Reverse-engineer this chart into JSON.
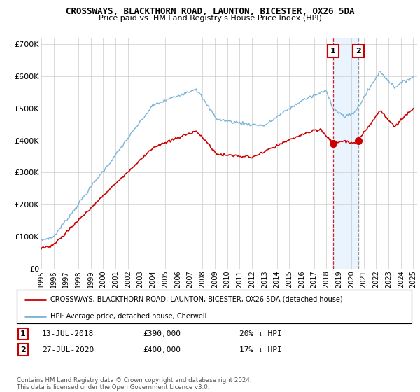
{
  "title1": "CROSSWAYS, BLACKTHORN ROAD, LAUNTON, BICESTER, OX26 5DA",
  "title2": "Price paid vs. HM Land Registry's House Price Index (HPI)",
  "ylabel_ticks": [
    "£0",
    "£100K",
    "£200K",
    "£300K",
    "£400K",
    "£500K",
    "£600K",
    "£700K"
  ],
  "ytick_vals": [
    0,
    100000,
    200000,
    300000,
    400000,
    500000,
    600000,
    700000
  ],
  "ylim": [
    0,
    720000
  ],
  "sale1_x": 2018.54,
  "sale1_y": 390000,
  "sale2_x": 2020.57,
  "sale2_y": 400000,
  "legend_line1": "CROSSWAYS, BLACKTHORN ROAD, LAUNTON, BICESTER, OX26 5DA (detached house)",
  "legend_line2": "HPI: Average price, detached house, Cherwell",
  "ann1": [
    "1",
    "13-JUL-2018",
    "£390,000",
    "20% ↓ HPI"
  ],
  "ann2": [
    "2",
    "27-JUL-2020",
    "£400,000",
    "17% ↓ HPI"
  ],
  "footnote": "Contains HM Land Registry data © Crown copyright and database right 2024.\nThis data is licensed under the Open Government Licence v3.0.",
  "hpi_color": "#7ab4d8",
  "price_color": "#cc0000",
  "shade_color": "#ddeeff",
  "plot_bg": "#ffffff",
  "grid_color": "#cccccc",
  "xlim_left": 1995.0,
  "xlim_right": 2025.3
}
